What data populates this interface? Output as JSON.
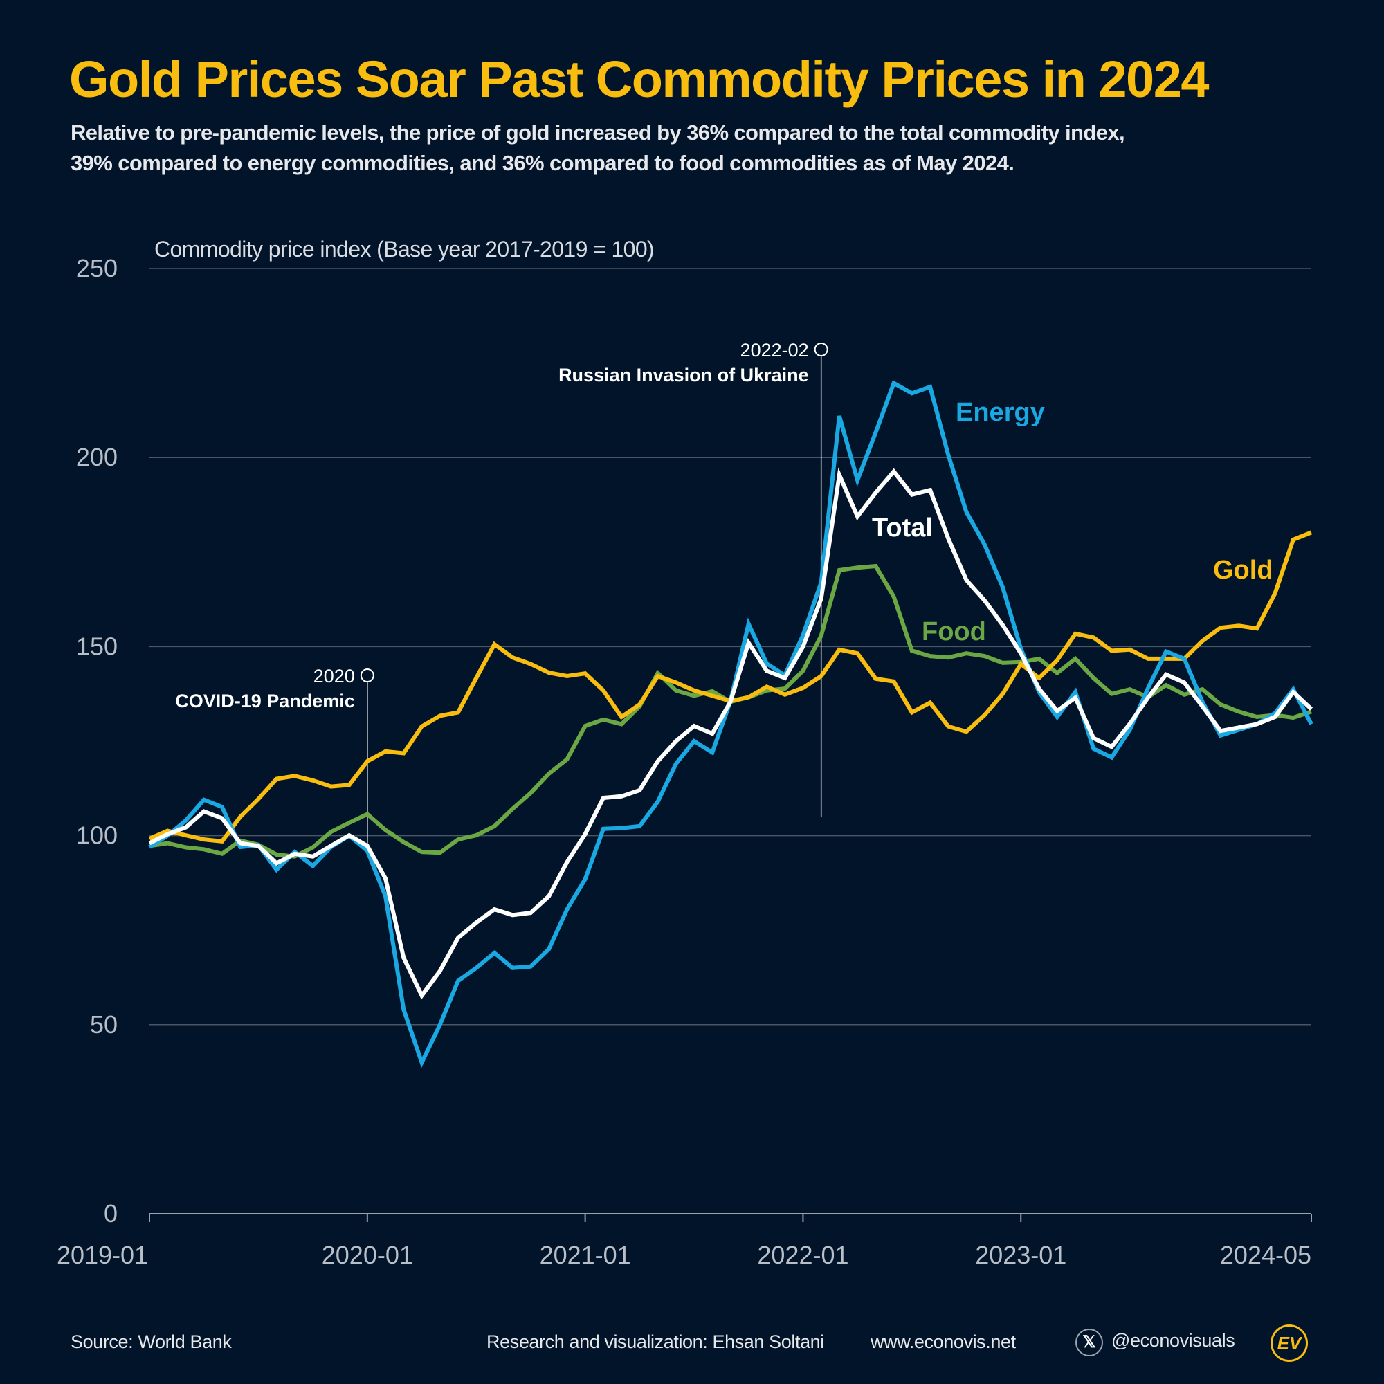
{
  "title": "Gold Prices Soar Past Commodity Prices in 2024",
  "subtitle_lines": [
    "Relative to pre-pandemic levels, the price of gold increased by 36% compared to the total commodity index,",
    "39% compared to energy commodities, and 36% compared to food commodities as of May 2024."
  ],
  "footer": {
    "source": "Source: World Bank",
    "credit": "Research and visualization: Ehsan Soltani",
    "website": "www.econovis.net",
    "handle": "@econovisuals",
    "logo_text": "EV"
  },
  "chart_data": {
    "type": "line",
    "ylabel": "Commodity price index (Base year 2017-2019 = 100)",
    "ylim": [
      0,
      250
    ],
    "yticks": [
      0,
      50,
      100,
      150,
      200,
      250
    ],
    "x_start": "2019-01",
    "x_end": "2024-05",
    "xticks": [
      "2019-01",
      "2020-01",
      "2021-01",
      "2022-01",
      "2023-01",
      "2024-05"
    ],
    "grid": true,
    "background": "#021429",
    "annotations": [
      {
        "date": "2020-01",
        "label": "2020",
        "text": "COVID-19 Pandemic"
      },
      {
        "date": "2022-02",
        "label": "2022-02",
        "text": "Russian Invasion of Ukraine"
      }
    ],
    "series": [
      {
        "name": "Energy",
        "color": "#1AA8E3",
        "values": [
          97,
          100,
          104,
          109.5,
          107.6,
          97,
          97.5,
          91,
          95.7,
          92,
          97,
          100,
          96,
          84,
          54,
          40,
          50,
          61.6,
          65,
          69,
          65,
          65.4,
          70,
          80.5,
          88.5,
          101.8,
          102,
          102.5,
          109,
          119,
          125,
          122,
          135.5,
          156,
          145.5,
          142.4,
          153,
          167,
          211,
          194,
          206.6,
          219.7,
          217,
          218.7,
          200.7,
          185.6,
          177,
          165.7,
          149.4,
          138,
          131.4,
          138,
          123,
          120.7,
          128,
          139,
          148.7,
          146.8,
          135.4,
          126.5,
          128,
          129.5,
          132.4,
          138.7,
          129.5
        ]
      },
      {
        "name": "Total",
        "color": "#FFFFFF",
        "values": [
          98,
          100.4,
          102.2,
          106.4,
          104.6,
          98,
          97.3,
          92.7,
          95.2,
          94.5,
          97.3,
          100.1,
          97.3,
          88.7,
          67.7,
          57.7,
          64.2,
          73,
          77,
          80.5,
          79,
          79.6,
          84,
          93,
          100.4,
          110,
          110.4,
          112,
          119.7,
          125,
          129,
          127,
          135.4,
          151,
          143.6,
          141.7,
          150,
          162.7,
          195.4,
          184.4,
          190.7,
          196.3,
          190.2,
          191.4,
          178.6,
          167.6,
          162.2,
          155.7,
          148.2,
          138.9,
          133,
          136.5,
          125.8,
          123.5,
          129.6,
          136.5,
          142.6,
          140.5,
          134.2,
          127.7,
          128.6,
          129.5,
          131.4,
          138,
          133.5
        ]
      },
      {
        "name": "Food",
        "color": "#6BA845",
        "values": [
          97.3,
          98,
          96.9,
          96.4,
          95.2,
          98.7,
          97.6,
          95,
          94.5,
          96.9,
          101,
          103.4,
          105.7,
          101.5,
          98.3,
          95.7,
          95.5,
          99,
          100.1,
          102.5,
          107.1,
          111.3,
          116.4,
          120.2,
          129,
          130.7,
          129.5,
          134.2,
          143,
          138.4,
          137,
          138.2,
          135.4,
          136.6,
          138.4,
          138.9,
          143.6,
          152.9,
          170.2,
          170.9,
          171.3,
          163.2,
          148.9,
          147.5,
          147.1,
          148.2,
          147.5,
          145.7,
          145.9,
          146.8,
          143,
          146.8,
          141.7,
          137.5,
          138.7,
          136.6,
          139.8,
          137.3,
          138.7,
          134.7,
          132.8,
          131.4,
          131.9,
          131.2,
          132.8
        ]
      },
      {
        "name": "Gold",
        "color": "#F9BD10",
        "values": [
          99.2,
          101.3,
          100.1,
          99,
          98.5,
          105,
          109.7,
          115,
          115.8,
          114.6,
          113,
          113.4,
          119.7,
          122.3,
          121.8,
          128.9,
          131.7,
          132.6,
          141.7,
          150.6,
          147.1,
          145.4,
          143.1,
          142.2,
          142.9,
          138.4,
          131.4,
          134.7,
          142.2,
          140.5,
          138.4,
          137,
          135.6,
          136.6,
          139.4,
          137.3,
          139.1,
          142.2,
          149.2,
          148.2,
          141.5,
          140.8,
          132.6,
          135.2,
          128.9,
          127.5,
          131.9,
          137.5,
          145.4,
          141.7,
          146.4,
          153.4,
          152.4,
          148.9,
          149.2,
          146.8,
          146.8,
          146.8,
          151.5,
          155,
          155.5,
          154.8,
          164.1,
          178.3,
          180.2
        ]
      }
    ]
  }
}
